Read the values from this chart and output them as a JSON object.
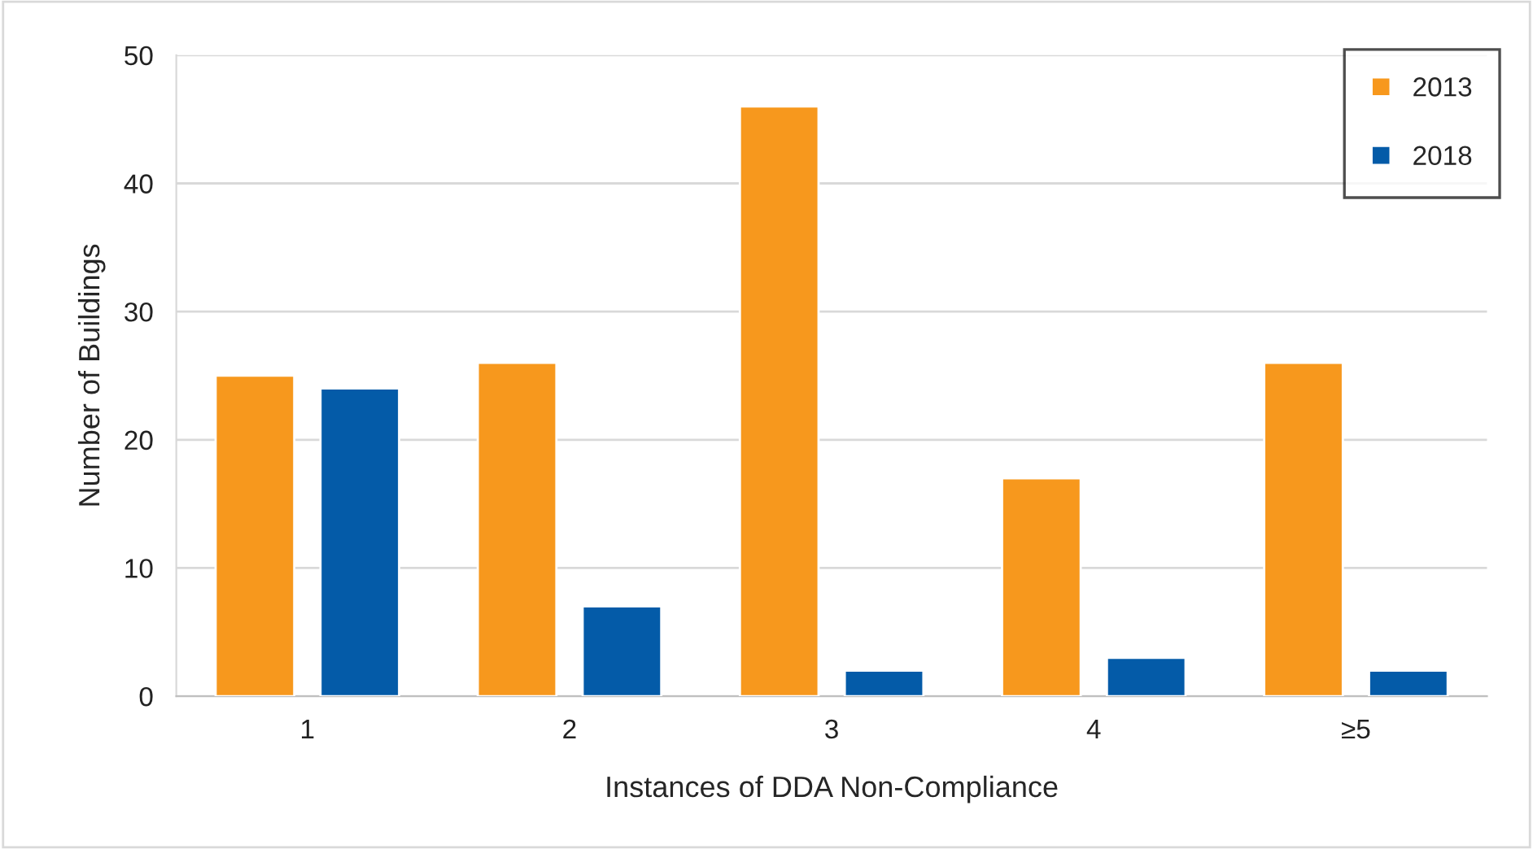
{
  "chart_data": {
    "type": "bar",
    "xlabel": "Instances of DDA Non-Compliance",
    "ylabel": "Number of Buildings",
    "categories": [
      "1",
      "2",
      "3",
      "4",
      "≥5"
    ],
    "series": [
      {
        "name": "2013",
        "color": "#f7981d",
        "values": [
          25,
          26,
          46,
          17,
          26
        ]
      },
      {
        "name": "2018",
        "color": "#045ba8",
        "values": [
          24,
          7,
          2,
          3,
          2
        ]
      }
    ],
    "ylim": [
      0,
      50
    ],
    "yticks": [
      0,
      10,
      20,
      30,
      40,
      50
    ],
    "grid": "y",
    "legend": "top right"
  }
}
